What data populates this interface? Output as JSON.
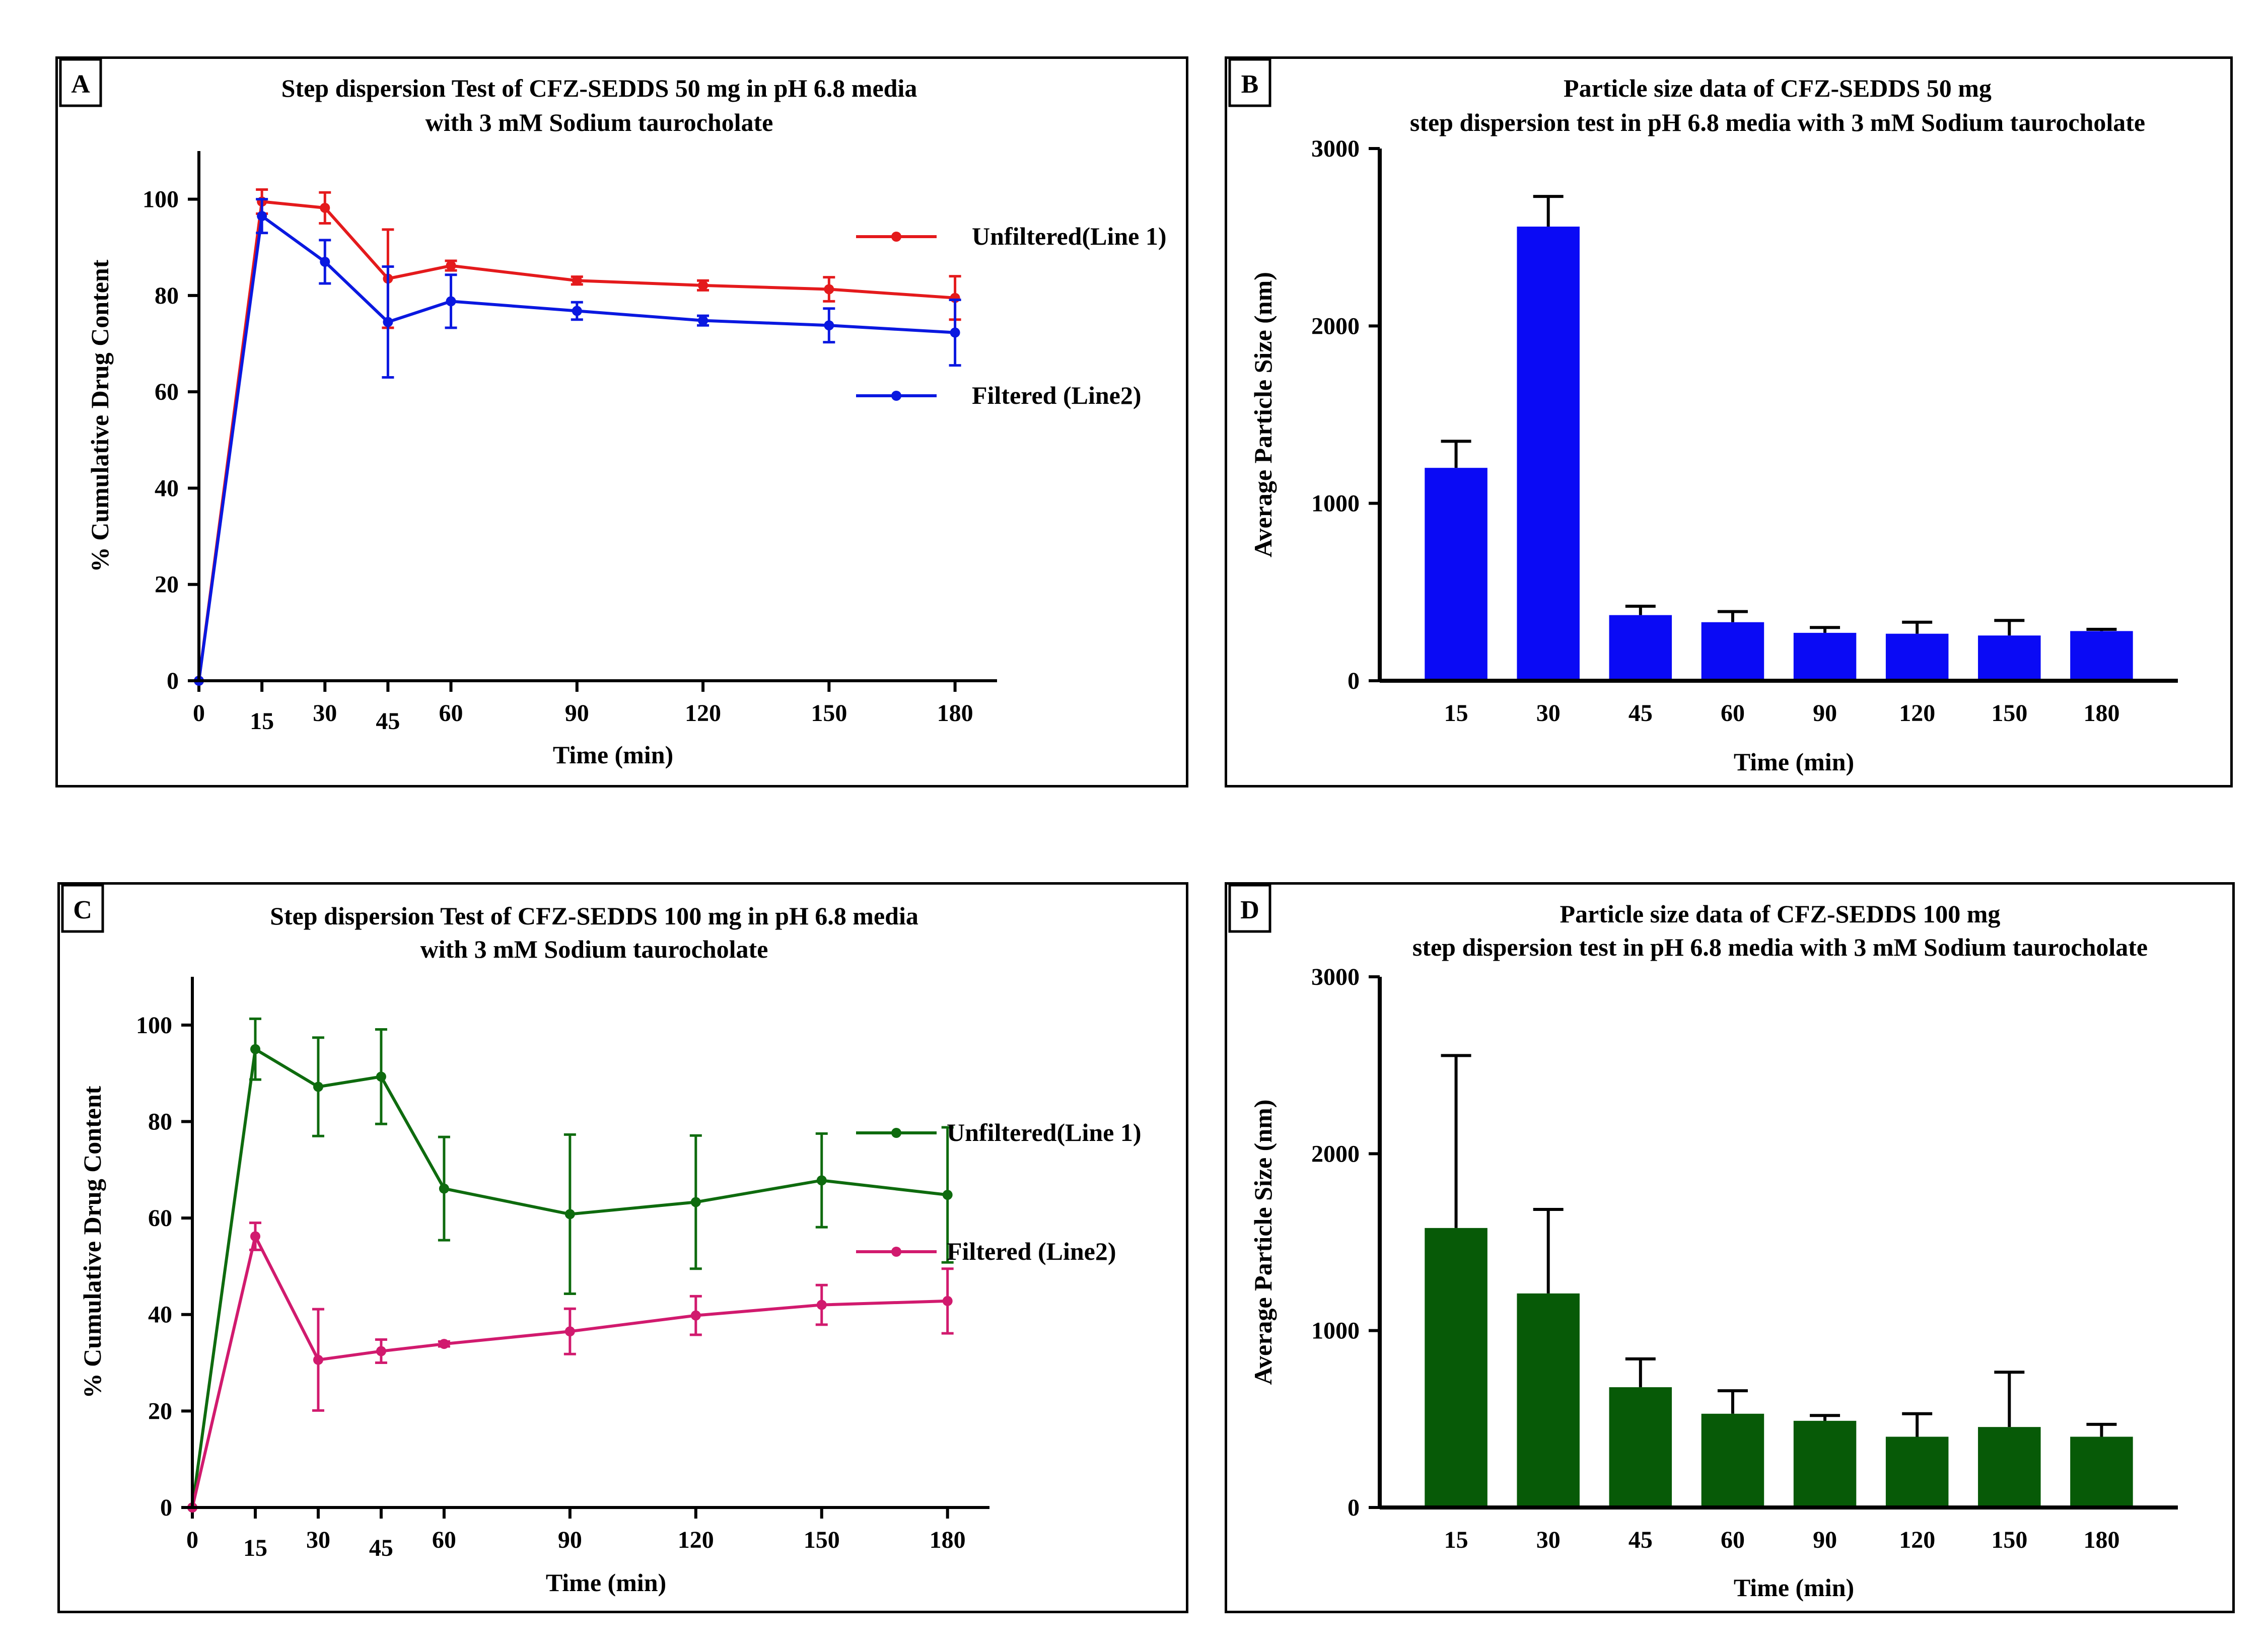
{
  "chart_data": [
    {
      "panel": "A",
      "type": "line",
      "title": [
        "Step dispersion Test of CFZ-SEDDS 50 mg in pH 6.8 media",
        "with 3 mM Sodium taurocholate"
      ],
      "xlabel": "Time (min)",
      "ylabel": "% Cumulative Drug Content",
      "xlim": [
        0,
        190
      ],
      "ylim": [
        0,
        110
      ],
      "x_ticks": [
        0,
        15,
        30,
        45,
        60,
        90,
        120,
        150,
        180
      ],
      "y_ticks": [
        0,
        20,
        40,
        60,
        80,
        100
      ],
      "series": [
        {
          "name": "Unfiltered(Line 1)",
          "color": "#e41a1c",
          "x": [
            0,
            15,
            30,
            45,
            60,
            90,
            120,
            150,
            180
          ],
          "y": [
            0,
            99.5,
            98.2,
            83.5,
            86.2,
            83.1,
            82.1,
            81.3,
            79.5
          ],
          "err": [
            0,
            2.5,
            3.2,
            10.2,
            1.0,
            0.8,
            1.0,
            2.5,
            4.5
          ]
        },
        {
          "name": "Filtered (Line2)",
          "color": "#0a18e0",
          "x": [
            0,
            15,
            30,
            45,
            60,
            90,
            120,
            150,
            180
          ],
          "y": [
            0,
            96.5,
            87.0,
            74.5,
            78.8,
            76.8,
            74.8,
            73.8,
            72.3
          ],
          "err": [
            0,
            3.5,
            4.5,
            11.5,
            5.5,
            1.8,
            1.0,
            3.5,
            6.8
          ]
        }
      ],
      "legend": "right"
    },
    {
      "panel": "B",
      "type": "bar",
      "title": [
        "Particle size data of CFZ-SEDDS 50 mg",
        "step dispersion test in pH 6.8 media with 3 mM Sodium taurocholate"
      ],
      "xlabel": "Time (min)",
      "ylabel": "Average Particle Size (nm)",
      "ylim": [
        0,
        3000
      ],
      "y_ticks": [
        0,
        1000,
        2000,
        3000
      ],
      "categories": [
        "15",
        "30",
        "45",
        "60",
        "90",
        "120",
        "150",
        "180"
      ],
      "values": [
        1200,
        2560,
        370,
        330,
        270,
        265,
        255,
        280
      ],
      "err": [
        150,
        170,
        50,
        60,
        30,
        65,
        85,
        10
      ],
      "color": "#0a0af5"
    },
    {
      "panel": "C",
      "type": "line",
      "title": [
        "Step dispersion Test of CFZ-SEDDS 100 mg in pH 6.8 media",
        "with 3 mM Sodium taurocholate"
      ],
      "xlabel": "Time (min)",
      "ylabel": "% Cumulative Drug Content",
      "xlim": [
        0,
        190
      ],
      "ylim": [
        0,
        110
      ],
      "x_ticks": [
        0,
        15,
        30,
        45,
        60,
        90,
        120,
        150,
        180
      ],
      "y_ticks": [
        0,
        20,
        40,
        60,
        80,
        100
      ],
      "series": [
        {
          "name": "Unfiltered(Line 1)",
          "color": "#0e6b0e",
          "x": [
            0,
            15,
            30,
            45,
            60,
            90,
            120,
            150,
            180
          ],
          "y": [
            0,
            95.0,
            87.2,
            89.3,
            66.1,
            60.8,
            63.3,
            67.8,
            64.8
          ],
          "err": [
            0,
            6.3,
            10.2,
            9.8,
            10.7,
            16.5,
            13.8,
            9.7,
            14.0
          ]
        },
        {
          "name": "Filtered (Line2)",
          "color": "#d11a6e",
          "x": [
            0,
            15,
            30,
            45,
            60,
            90,
            120,
            150,
            180
          ],
          "y": [
            0,
            56.2,
            30.6,
            32.4,
            33.9,
            36.5,
            39.8,
            42.0,
            42.8
          ],
          "err": [
            0,
            2.8,
            10.5,
            2.4,
            0.5,
            4.7,
            4.0,
            4.1,
            6.7
          ]
        }
      ],
      "legend": "right"
    },
    {
      "panel": "D",
      "type": "bar",
      "title": [
        "Particle size data of CFZ-SEDDS 100 mg",
        "step dispersion test in pH 6.8 media with 3 mM Sodium taurocholate"
      ],
      "xlabel": "Time (min)",
      "ylabel": "Average Particle Size (nm)",
      "ylim": [
        0,
        3000
      ],
      "y_ticks": [
        0,
        1000,
        2000,
        3000
      ],
      "categories": [
        "15",
        "30",
        "45",
        "60",
        "90",
        "120",
        "150",
        "180"
      ],
      "values": [
        1580,
        1210,
        680,
        530,
        490,
        400,
        455,
        400
      ],
      "err": [
        975,
        475,
        160,
        130,
        30,
        130,
        310,
        70
      ],
      "color": "#075a07"
    }
  ]
}
